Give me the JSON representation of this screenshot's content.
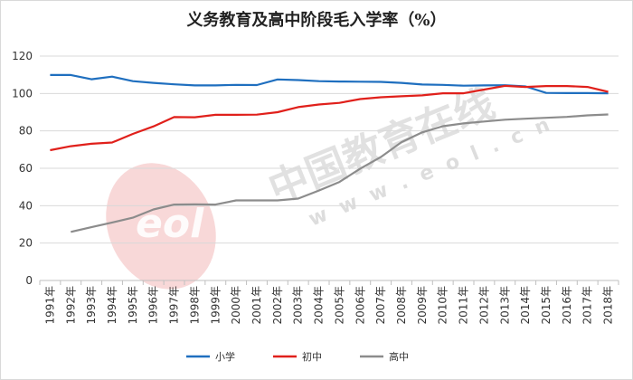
{
  "chart_data": {
    "type": "line",
    "title": "义务教育及高中阶段毛入学率（%）",
    "categories": [
      "1991年",
      "1992年",
      "1993年",
      "1994年",
      "1995年",
      "1996年",
      "1997年",
      "1998年",
      "1999年",
      "2000年",
      "2001年",
      "2002年",
      "2003年",
      "2004年",
      "2005年",
      "2006年",
      "2007年",
      "2008年",
      "2009年",
      "2010年",
      "2011年",
      "2012年",
      "2013年",
      "2014年",
      "2015年",
      "2016年",
      "2017年",
      "2018年"
    ],
    "ylim": [
      0,
      120
    ],
    "yticks": [
      0,
      20,
      40,
      60,
      80,
      100,
      120
    ],
    "grid": true,
    "legend_position": "bottom",
    "series": [
      {
        "name": "小学",
        "color": "#1f6fbf",
        "values": [
          109.9,
          109.9,
          107.6,
          109.0,
          106.6,
          105.7,
          104.9,
          104.3,
          104.3,
          104.6,
          104.5,
          107.5,
          107.2,
          106.6,
          106.4,
          106.3,
          106.2,
          105.7,
          104.8,
          104.6,
          104.2,
          104.3,
          104.4,
          103.8,
          100.3,
          100.2,
          100.2,
          100.1
        ]
      },
      {
        "name": "初中",
        "color": "#e0201b",
        "values": [
          69.7,
          71.8,
          73.1,
          73.8,
          78.4,
          82.4,
          87.4,
          87.3,
          88.6,
          88.6,
          88.7,
          90.0,
          92.7,
          94.1,
          95.0,
          97.0,
          98.0,
          98.5,
          99.0,
          100.1,
          100.1,
          102.1,
          104.1,
          103.5,
          104.0,
          104.0,
          103.5,
          100.9
        ]
      },
      {
        "name": "高中",
        "color": "#8c8c8c",
        "values": [
          null,
          26.0,
          28.5,
          31.0,
          33.6,
          38.0,
          40.6,
          40.7,
          40.6,
          42.8,
          42.8,
          42.8,
          43.8,
          48.1,
          52.7,
          59.8,
          66.0,
          74.0,
          79.2,
          82.5,
          84.0,
          85.0,
          86.0,
          86.5,
          87.0,
          87.5,
          88.3,
          88.8
        ]
      }
    ]
  },
  "watermark": {
    "logo_text": "eol",
    "brand_text": "中国教育在线",
    "url_text": "w w w . e o l . c n"
  }
}
